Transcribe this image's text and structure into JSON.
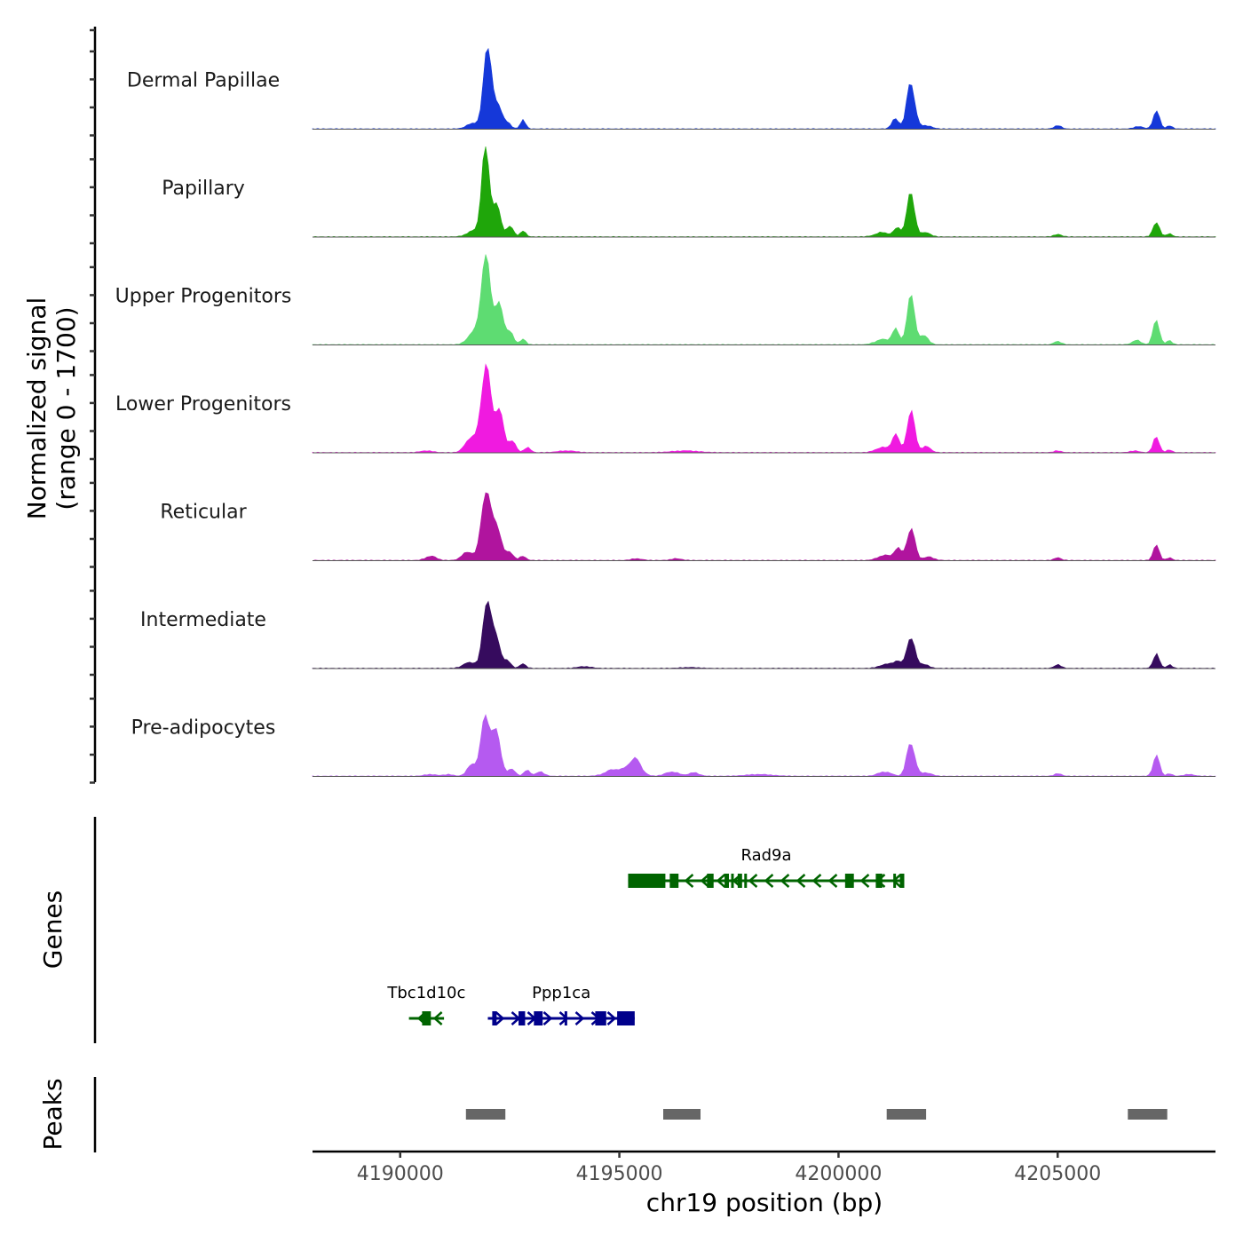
{
  "chart_data": {
    "type": "area",
    "title": "",
    "ylabel_line1": "Normalized signal",
    "ylabel_line2": "(range 0 - 1700)",
    "ylim": [
      0,
      1700
    ],
    "xlabel": "chr19 position (bp)",
    "xlim": [
      4188000,
      4208600
    ],
    "xticks": [
      4190000,
      4195000,
      4200000,
      4205000
    ],
    "xtick_labels": [
      "4190000",
      "4195000",
      "4200000",
      "4205000"
    ],
    "series": [
      {
        "name": "Dermal Papillae",
        "color": "#1538D9",
        "peaks": [
          [
            4191700,
            0.07,
            160
          ],
          [
            4192000,
            1.0,
            90
          ],
          [
            4192250,
            0.25,
            90
          ],
          [
            4192450,
            0.06,
            80
          ],
          [
            4192800,
            0.1,
            60
          ],
          [
            4201300,
            0.12,
            80
          ],
          [
            4201650,
            0.55,
            90
          ],
          [
            4202000,
            0.04,
            120
          ],
          [
            4205000,
            0.04,
            80
          ],
          [
            4206850,
            0.03,
            100
          ],
          [
            4207250,
            0.22,
            70
          ],
          [
            4207550,
            0.04,
            60
          ]
        ]
      },
      {
        "name": "Papillary",
        "color": "#1FA60A",
        "peaks": [
          [
            4191700,
            0.07,
            160
          ],
          [
            4191950,
            1.0,
            90
          ],
          [
            4192200,
            0.35,
            90
          ],
          [
            4192500,
            0.12,
            80
          ],
          [
            4192800,
            0.07,
            60
          ],
          [
            4201000,
            0.05,
            160
          ],
          [
            4201350,
            0.1,
            80
          ],
          [
            4201650,
            0.5,
            90
          ],
          [
            4202000,
            0.05,
            100
          ],
          [
            4205000,
            0.03,
            80
          ],
          [
            4207250,
            0.18,
            70
          ],
          [
            4207550,
            0.04,
            60
          ]
        ]
      },
      {
        "name": "Upper Progenitors",
        "color": "#5EDC72",
        "peaks": [
          [
            4191650,
            0.12,
            130
          ],
          [
            4191950,
            1.0,
            110
          ],
          [
            4192250,
            0.45,
            100
          ],
          [
            4192500,
            0.15,
            80
          ],
          [
            4192800,
            0.07,
            60
          ],
          [
            4201000,
            0.06,
            160
          ],
          [
            4201300,
            0.17,
            80
          ],
          [
            4201650,
            0.55,
            90
          ],
          [
            4201950,
            0.1,
            100
          ],
          [
            4205000,
            0.04,
            80
          ],
          [
            4206800,
            0.05,
            100
          ],
          [
            4207250,
            0.3,
            70
          ],
          [
            4207550,
            0.05,
            60
          ]
        ]
      },
      {
        "name": "Lower Progenitors",
        "color": "#F01AE0",
        "peaks": [
          [
            4190600,
            0.02,
            140
          ],
          [
            4191600,
            0.17,
            120
          ],
          [
            4191950,
            1.0,
            110
          ],
          [
            4192250,
            0.5,
            100
          ],
          [
            4192550,
            0.14,
            80
          ],
          [
            4192900,
            0.06,
            70
          ],
          [
            4193800,
            0.02,
            200
          ],
          [
            4196500,
            0.02,
            300
          ],
          [
            4201000,
            0.06,
            150
          ],
          [
            4201300,
            0.21,
            80
          ],
          [
            4201650,
            0.47,
            90
          ],
          [
            4202000,
            0.07,
            100
          ],
          [
            4205000,
            0.02,
            80
          ],
          [
            4206750,
            0.02,
            100
          ],
          [
            4207250,
            0.18,
            70
          ],
          [
            4207550,
            0.03,
            60
          ]
        ]
      },
      {
        "name": "Reticular",
        "color": "#B0149E",
        "peaks": [
          [
            4190700,
            0.05,
            120
          ],
          [
            4191550,
            0.1,
            130
          ],
          [
            4191950,
            0.82,
            100
          ],
          [
            4192200,
            0.42,
            100
          ],
          [
            4192500,
            0.1,
            80
          ],
          [
            4192800,
            0.05,
            70
          ],
          [
            4195400,
            0.02,
            120
          ],
          [
            4196300,
            0.02,
            120
          ],
          [
            4201050,
            0.06,
            150
          ],
          [
            4201350,
            0.14,
            80
          ],
          [
            4201650,
            0.38,
            90
          ],
          [
            4202050,
            0.04,
            120
          ],
          [
            4205000,
            0.03,
            80
          ],
          [
            4207250,
            0.17,
            70
          ],
          [
            4207550,
            0.03,
            60
          ]
        ]
      },
      {
        "name": "Intermediate",
        "color": "#360B5E",
        "peaks": [
          [
            4191600,
            0.07,
            150
          ],
          [
            4191980,
            0.82,
            90
          ],
          [
            4192200,
            0.35,
            90
          ],
          [
            4192450,
            0.08,
            80
          ],
          [
            4192800,
            0.05,
            70
          ],
          [
            4194200,
            0.02,
            150
          ],
          [
            4196600,
            0.01,
            200
          ],
          [
            4201100,
            0.05,
            150
          ],
          [
            4201350,
            0.08,
            80
          ],
          [
            4201650,
            0.38,
            90
          ],
          [
            4201950,
            0.05,
            100
          ],
          [
            4205000,
            0.04,
            80
          ],
          [
            4207250,
            0.16,
            70
          ],
          [
            4207550,
            0.04,
            60
          ]
        ]
      },
      {
        "name": "Pre-adipocytes",
        "color": "#B55AF0",
        "peaks": [
          [
            4190700,
            0.02,
            140
          ],
          [
            4191100,
            0.02,
            100
          ],
          [
            4191650,
            0.14,
            110
          ],
          [
            4191950,
            0.7,
            100
          ],
          [
            4192200,
            0.48,
            100
          ],
          [
            4192550,
            0.08,
            80
          ],
          [
            4192900,
            0.07,
            70
          ],
          [
            4193200,
            0.05,
            90
          ],
          [
            4194900,
            0.08,
            200
          ],
          [
            4195350,
            0.2,
            140
          ],
          [
            4196200,
            0.05,
            150
          ],
          [
            4196700,
            0.04,
            120
          ],
          [
            4198200,
            0.02,
            300
          ],
          [
            4201050,
            0.05,
            150
          ],
          [
            4201650,
            0.4,
            90
          ],
          [
            4202000,
            0.04,
            120
          ],
          [
            4205000,
            0.03,
            80
          ],
          [
            4207250,
            0.25,
            70
          ],
          [
            4207550,
            0.03,
            60
          ],
          [
            4208000,
            0.02,
            120
          ]
        ]
      }
    ],
    "genes_label": "Genes",
    "genes": [
      {
        "name": "Rad9a",
        "color": "#006400",
        "start": 4195200,
        "end": 4201500,
        "strand": "-",
        "row": 0,
        "exons": [
          [
            4195200,
            4196050
          ],
          [
            4196150,
            4196350
          ],
          [
            4197000,
            4197150
          ],
          [
            4197400,
            4197500
          ],
          [
            4197550,
            4197600
          ],
          [
            4197700,
            4197800
          ],
          [
            4197850,
            4197900
          ],
          [
            4200150,
            4200350
          ],
          [
            4200850,
            4201000
          ],
          [
            4201250,
            4201300
          ],
          [
            4201400,
            4201500
          ]
        ]
      },
      {
        "name": "Tbc1d10c",
        "color": "#006400",
        "start": 4190200,
        "end": 4191000,
        "strand": "-",
        "row": 1,
        "exons": [
          [
            4190500,
            4190700
          ]
        ]
      },
      {
        "name": "Ppp1ca",
        "color": "#00008B",
        "start": 4192000,
        "end": 4195350,
        "strand": "+",
        "row": 1,
        "exons": [
          [
            4192100,
            4192200
          ],
          [
            4192700,
            4192850
          ],
          [
            4193050,
            4193250
          ],
          [
            4193750,
            4193800
          ],
          [
            4194450,
            4194700
          ],
          [
            4194950,
            4195350
          ]
        ]
      }
    ],
    "peaks_label": "Peaks",
    "peak_regions": [
      [
        4191500,
        4192400
      ],
      [
        4196000,
        4196850
      ],
      [
        4201100,
        4202000
      ],
      [
        4206600,
        4207500
      ]
    ],
    "peak_color": "#666666"
  }
}
